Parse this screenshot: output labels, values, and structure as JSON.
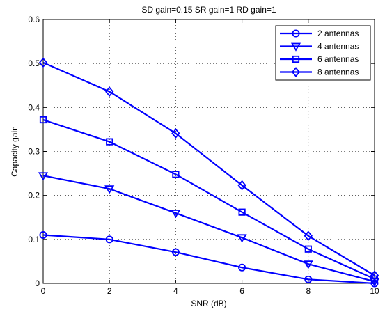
{
  "chart_data": {
    "type": "line",
    "title": "SD gain=0.15   SR gain=1   RD gain=1",
    "xlabel": "SNR (dB)",
    "ylabel": "Capacity gain",
    "xlim": [
      0,
      10
    ],
    "ylim": [
      0,
      0.6
    ],
    "xticks": [
      0,
      2,
      4,
      6,
      8,
      10
    ],
    "yticks": [
      0,
      0.1,
      0.2,
      0.3,
      0.4,
      0.5,
      0.6
    ],
    "xtick_labels": [
      "0",
      "2",
      "4",
      "6",
      "8",
      "10"
    ],
    "ytick_labels": [
      "0",
      "0.1",
      "0.2",
      "0.3",
      "0.4",
      "0.5",
      "0.6"
    ],
    "grid": true,
    "legend_position": "top-right",
    "color": "#0000ff",
    "x": [
      0,
      2,
      4,
      6,
      8,
      10
    ],
    "series": [
      {
        "name": "2 antennas",
        "marker": "circle",
        "values": [
          0.11,
          0.1,
          0.071,
          0.036,
          0.009,
          0.0
        ]
      },
      {
        "name": "4 antennas",
        "marker": "triangle-down",
        "values": [
          0.245,
          0.215,
          0.16,
          0.104,
          0.044,
          0.004
        ]
      },
      {
        "name": "6 antennas",
        "marker": "square",
        "values": [
          0.372,
          0.322,
          0.248,
          0.162,
          0.078,
          0.01
        ]
      },
      {
        "name": "8 antennas",
        "marker": "diamond",
        "values": [
          0.502,
          0.436,
          0.341,
          0.223,
          0.108,
          0.018
        ]
      }
    ]
  }
}
